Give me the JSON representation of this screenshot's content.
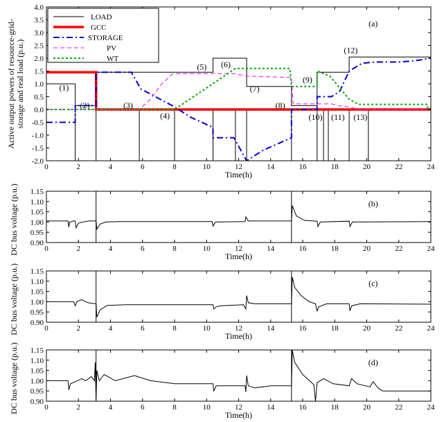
{
  "chart_data": [
    {
      "id": "a",
      "type": "line",
      "panel_label": "(a)",
      "ylabel_lines": [
        "Active output powers of resource-grid-",
        "storage and real load (p.u.)"
      ],
      "xlabel": "Time(h)",
      "xlim": [
        0,
        24
      ],
      "ylim": [
        -2.0,
        4.0
      ],
      "x_ticks": [
        "0",
        "2",
        "4",
        "6",
        "8",
        "10",
        "12",
        "14",
        "16",
        "18",
        "20",
        "22",
        "24"
      ],
      "y_ticks": [
        "4.0",
        "3.5",
        "3.0",
        "2.5",
        "2.0",
        "1.5",
        "1.0",
        "0.5",
        "0.0",
        "-0.5",
        "-1.0",
        "-1.5",
        "-2.0"
      ],
      "y_tick_values": [
        4.0,
        3.5,
        3.0,
        2.5,
        2.0,
        1.5,
        1.0,
        0.5,
        0.0,
        -0.5,
        -1.0,
        -1.5,
        -2.0
      ],
      "legend_position": "top-left",
      "series": [
        {
          "name": "LOAD",
          "color": "#000000",
          "style": "solid",
          "points": [
            [
              0,
              1
            ],
            [
              1.8,
              1
            ],
            [
              1.8,
              0.15
            ],
            [
              3.1,
              0.15
            ],
            [
              3.1,
              1.45
            ],
            [
              10.4,
              1.45
            ],
            [
              10.4,
              2.0
            ],
            [
              12.5,
              2.0
            ],
            [
              12.5,
              0.9
            ],
            [
              15.3,
              0.9
            ],
            [
              15.3,
              0.15
            ],
            [
              16.9,
              0.15
            ],
            [
              16.9,
              1.45
            ],
            [
              18.9,
              1.45
            ],
            [
              18.9,
              2.05
            ],
            [
              24,
              2.05
            ]
          ]
        },
        {
          "name": "GCC",
          "color": "#ff0000",
          "style": "thick",
          "points": [
            [
              0,
              1.45
            ],
            [
              3.1,
              1.45
            ],
            [
              3.1,
              0
            ],
            [
              24,
              0
            ]
          ]
        },
        {
          "name": "STORAGE",
          "color": "#0000cc",
          "style": "dashdot",
          "points": [
            [
              0,
              -0.5
            ],
            [
              1.8,
              -0.5
            ],
            [
              1.8,
              0.15
            ],
            [
              3.1,
              0.15
            ],
            [
              3.1,
              1.45
            ],
            [
              5.3,
              1.45
            ],
            [
              5.9,
              0.8
            ],
            [
              6.8,
              0.5
            ],
            [
              8.0,
              0.1
            ],
            [
              9.0,
              -0.3
            ],
            [
              10.4,
              -0.7
            ],
            [
              10.4,
              -1.1
            ],
            [
              11.7,
              -1.1
            ],
            [
              12.5,
              -2.0
            ],
            [
              13.5,
              -1.6
            ],
            [
              15.3,
              -1.1
            ],
            [
              15.3,
              0.0
            ],
            [
              16.9,
              0.0
            ],
            [
              16.9,
              0.5
            ],
            [
              17.8,
              0.5
            ],
            [
              18.3,
              0.7
            ],
            [
              18.9,
              1.5
            ],
            [
              19.7,
              1.8
            ],
            [
              20.5,
              1.85
            ],
            [
              22.0,
              1.85
            ],
            [
              23.0,
              1.9
            ],
            [
              24,
              2.0
            ]
          ]
        },
        {
          "name": "PV",
          "color": "#ff00ff",
          "style": "dashed",
          "points": [
            [
              0,
              0
            ],
            [
              5.8,
              0
            ],
            [
              6.5,
              0.4
            ],
            [
              7.2,
              1.0
            ],
            [
              7.9,
              1.4
            ],
            [
              11.7,
              1.4
            ],
            [
              12.5,
              1.3
            ],
            [
              15.3,
              1.25
            ],
            [
              15.4,
              0.22
            ],
            [
              17.8,
              0.22
            ],
            [
              18.2,
              0.15
            ],
            [
              18.9,
              0.1
            ],
            [
              19.5,
              0
            ],
            [
              24,
              0
            ]
          ]
        },
        {
          "name": "WT",
          "color": "#00aa00",
          "style": "dotted",
          "points": [
            [
              0,
              0
            ],
            [
              8.0,
              0
            ],
            [
              11.8,
              1.6
            ],
            [
              15.2,
              1.6
            ],
            [
              15.3,
              0.9
            ],
            [
              16.9,
              0.9
            ],
            [
              16.9,
              1.5
            ],
            [
              17.7,
              1.3
            ],
            [
              18.9,
              0.4
            ],
            [
              19.5,
              0.2
            ],
            [
              23.8,
              0.2
            ],
            [
              23.8,
              0.05
            ],
            [
              24,
              0.05
            ]
          ]
        }
      ],
      "vertical_markers": [
        1.8,
        3.1,
        5.8,
        8.0,
        10.4,
        11.8,
        12.5,
        15.3,
        16.9,
        17.3,
        17.6,
        18.9,
        20.1
      ],
      "annotations": [
        {
          "text": "(1)",
          "x": 1.1,
          "y": 0.75
        },
        {
          "text": "(2)",
          "x": 2.4,
          "y": 0.05
        },
        {
          "text": "(3)",
          "x": 5.1,
          "y": 0.05
        },
        {
          "text": "(4)",
          "x": 7.4,
          "y": -0.35
        },
        {
          "text": "(5)",
          "x": 9.7,
          "y": 1.55
        },
        {
          "text": "(6)",
          "x": 11.2,
          "y": 1.65
        },
        {
          "text": "(7)",
          "x": 13.0,
          "y": 0.7
        },
        {
          "text": "(8)",
          "x": 14.6,
          "y": 0.05
        },
        {
          "text": "(9)",
          "x": 16.3,
          "y": 1.05
        },
        {
          "text": "(10)",
          "x": 16.8,
          "y": -0.4
        },
        {
          "text": "(11)",
          "x": 18.2,
          "y": -0.4
        },
        {
          "text": "(12)",
          "x": 19.0,
          "y": 2.2
        },
        {
          "text": "(13)",
          "x": 19.6,
          "y": -0.4
        }
      ]
    },
    {
      "id": "b",
      "type": "line",
      "panel_label": "(b)",
      "ylabel": "DC bus voltage (p.u.)",
      "xlabel": "Time(h)",
      "xlim": [
        0,
        24
      ],
      "ylim": [
        0.9,
        1.15
      ],
      "x_ticks": [
        "0",
        "2",
        "4",
        "6",
        "8",
        "10",
        "12",
        "14",
        "16",
        "18",
        "20",
        "22",
        "24"
      ],
      "y_ticks": [
        "1.15",
        "1.10",
        "1.05",
        "1.00",
        "0.95",
        "0.90"
      ],
      "y_tick_values": [
        1.15,
        1.1,
        1.05,
        1.0,
        0.95,
        0.9
      ],
      "vertical_markers": [
        3.1,
        15.3
      ],
      "series": [
        {
          "name": "",
          "color": "#000000",
          "style": "solid",
          "points": [
            [
              0,
              1.005
            ],
            [
              1.35,
              1.005
            ],
            [
              1.4,
              0.975
            ],
            [
              1.45,
              1.0
            ],
            [
              1.7,
              1.005
            ],
            [
              1.8,
              1.005
            ],
            [
              1.85,
              0.972
            ],
            [
              2.0,
              0.995
            ],
            [
              2.6,
              1.005
            ],
            [
              3.1,
              1.005
            ],
            [
              3.15,
              0.965
            ],
            [
              3.35,
              0.99
            ],
            [
              3.7,
              1.0
            ],
            [
              4.5,
              1.002
            ],
            [
              10.35,
              1.002
            ],
            [
              10.4,
              0.98
            ],
            [
              10.55,
              1.0
            ],
            [
              12.4,
              1.002
            ],
            [
              12.45,
              1.025
            ],
            [
              12.6,
              1.005
            ],
            [
              15.3,
              1.005
            ],
            [
              15.35,
              1.08
            ],
            [
              15.6,
              1.03
            ],
            [
              16.1,
              1.008
            ],
            [
              16.9,
              1.004
            ],
            [
              16.95,
              0.978
            ],
            [
              17.1,
              1.0
            ],
            [
              18.9,
              1.004
            ],
            [
              18.95,
              0.978
            ],
            [
              19.1,
              1.0
            ],
            [
              24,
              1.002
            ]
          ]
        }
      ]
    },
    {
      "id": "c",
      "type": "line",
      "panel_label": "(c)",
      "ylabel": "DC bus voltage (p.u.)",
      "xlabel": "Time(h)",
      "xlim": [
        0,
        24
      ],
      "ylim": [
        0.9,
        1.15
      ],
      "x_ticks": [
        "0",
        "2",
        "4",
        "6",
        "8",
        "10",
        "12",
        "14",
        "16",
        "18",
        "20",
        "22",
        "24"
      ],
      "y_ticks": [
        "1.15",
        "1.10",
        "1.05",
        "1.00",
        "0.95",
        "0.90"
      ],
      "y_tick_values": [
        1.15,
        1.1,
        1.05,
        1.0,
        0.95,
        0.9
      ],
      "vertical_markers": [
        3.1,
        15.3
      ],
      "series": [
        {
          "name": "",
          "color": "#000000",
          "style": "solid",
          "points": [
            [
              0,
              1.0
            ],
            [
              1.7,
              1.0
            ],
            [
              1.8,
              0.98
            ],
            [
              1.9,
              1.0
            ],
            [
              2.2,
              1.01
            ],
            [
              2.6,
              0.995
            ],
            [
              3.1,
              0.99
            ],
            [
              3.15,
              0.925
            ],
            [
              3.35,
              0.96
            ],
            [
              3.8,
              0.982
            ],
            [
              5.0,
              0.985
            ],
            [
              10.4,
              0.985
            ],
            [
              10.45,
              0.965
            ],
            [
              10.6,
              0.975
            ],
            [
              10.9,
              0.98
            ],
            [
              12.3,
              0.985
            ],
            [
              12.45,
              0.965
            ],
            [
              12.5,
              1.03
            ],
            [
              12.6,
              0.995
            ],
            [
              13.0,
              0.99
            ],
            [
              15.3,
              0.99
            ],
            [
              15.35,
              1.12
            ],
            [
              15.5,
              1.07
            ],
            [
              15.9,
              1.03
            ],
            [
              16.4,
              1.0
            ],
            [
              16.8,
              0.99
            ],
            [
              16.9,
              0.955
            ],
            [
              17.0,
              0.975
            ],
            [
              17.5,
              0.99
            ],
            [
              18.9,
              0.99
            ],
            [
              18.95,
              0.955
            ],
            [
              19.05,
              0.98
            ],
            [
              19.6,
              0.99
            ],
            [
              24,
              0.988
            ]
          ]
        }
      ]
    },
    {
      "id": "d",
      "type": "line",
      "panel_label": "(d)",
      "ylabel": "DC bus voltage (p.u.)",
      "xlabel": "Time(h)",
      "xlim": [
        0,
        24
      ],
      "ylim": [
        0.9,
        1.15
      ],
      "x_ticks": [
        "0",
        "2",
        "4",
        "6",
        "8",
        "10",
        "12",
        "14",
        "16",
        "18",
        "20",
        "22",
        "24"
      ],
      "y_ticks": [
        "1.15",
        "1.10",
        "1.05",
        "1.00",
        "0.95",
        "0.90"
      ],
      "y_tick_values": [
        1.15,
        1.1,
        1.05,
        1.0,
        0.95,
        0.9
      ],
      "vertical_markers": [
        3.1,
        15.3
      ],
      "series": [
        {
          "name": "",
          "color": "#000000",
          "style": "solid",
          "points": [
            [
              0,
              1.0
            ],
            [
              1.35,
              1.0
            ],
            [
              1.4,
              0.955
            ],
            [
              1.5,
              0.985
            ],
            [
              1.8,
              0.995
            ],
            [
              2.2,
              1.01
            ],
            [
              2.45,
              1.0
            ],
            [
              2.8,
              1.02
            ],
            [
              3.0,
              1.0
            ],
            [
              3.05,
              1.09
            ],
            [
              3.1,
              0.905
            ],
            [
              3.15,
              1.05
            ],
            [
              3.3,
              1.0
            ],
            [
              3.6,
              1.03
            ],
            [
              4.3,
              1.0
            ],
            [
              5.5,
              1.025
            ],
            [
              6.5,
              1.0
            ],
            [
              8.0,
              0.985
            ],
            [
              10.4,
              0.985
            ],
            [
              10.45,
              0.95
            ],
            [
              10.6,
              0.975
            ],
            [
              11.2,
              0.975
            ],
            [
              12.4,
              0.975
            ],
            [
              12.45,
              0.945
            ],
            [
              12.5,
              1.025
            ],
            [
              12.6,
              0.975
            ],
            [
              13.0,
              0.965
            ],
            [
              14.0,
              0.975
            ],
            [
              15.3,
              0.975
            ],
            [
              15.35,
              1.15
            ],
            [
              15.5,
              1.09
            ],
            [
              16.0,
              1.03
            ],
            [
              16.7,
              0.98
            ],
            [
              16.8,
              0.9
            ],
            [
              16.9,
              0.99
            ],
            [
              17.3,
              1.01
            ],
            [
              17.9,
              0.985
            ],
            [
              18.9,
              0.975
            ],
            [
              19.05,
              1.01
            ],
            [
              19.4,
              0.985
            ],
            [
              20.2,
              0.97
            ],
            [
              20.4,
              0.995
            ],
            [
              20.7,
              0.965
            ],
            [
              21.0,
              0.95
            ],
            [
              24,
              0.95
            ]
          ]
        }
      ]
    }
  ]
}
